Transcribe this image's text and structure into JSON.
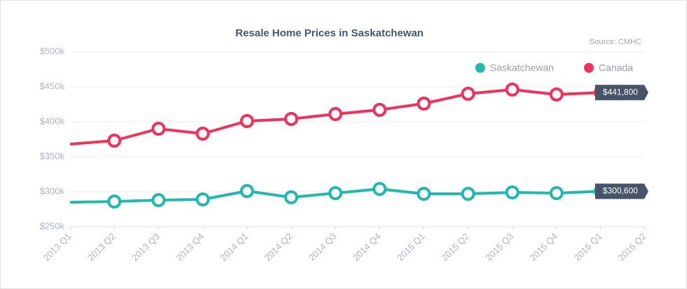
{
  "chart_data": {
    "type": "line",
    "title": "Resale Home Prices in Saskatchewan",
    "subtitle": "Source: CMHC",
    "categories": [
      "2013 Q1",
      "2013 Q2",
      "2013 Q3",
      "2013 Q4",
      "2014 Q1",
      "2014 Q2",
      "2014 Q3",
      "2014 Q4",
      "2015 Q1",
      "2015 Q2",
      "2015 Q3",
      "2015 Q4",
      "2016 Q1",
      "2016 Q2"
    ],
    "series": [
      {
        "name": "Saskatchewan",
        "color": "#22b8ad",
        "values": [
          285000,
          286000,
          288000,
          289000,
          301000,
          292000,
          298000,
          304000,
          297000,
          297000,
          299000,
          298000,
          300600,
          null
        ],
        "value_labels": [
          null,
          null,
          null,
          null,
          null,
          null,
          null,
          null,
          null,
          null,
          null,
          null,
          "$300,600",
          null
        ]
      },
      {
        "name": "Canada",
        "color": "#f0325a",
        "values": [
          368000,
          373000,
          390000,
          383000,
          401000,
          404000,
          411000,
          417000,
          426000,
          440000,
          446000,
          439000,
          441800,
          null
        ],
        "value_labels": [
          null,
          null,
          null,
          null,
          null,
          null,
          null,
          null,
          null,
          null,
          null,
          null,
          "$441,800",
          null
        ]
      }
    ],
    "ylim": [
      250000,
      500000
    ],
    "yticks": [
      {
        "value": 250000,
        "label": "$250k"
      },
      {
        "value": 300000,
        "label": "$300k"
      },
      {
        "value": 350000,
        "label": "$350k"
      },
      {
        "value": 400000,
        "label": "$400k"
      },
      {
        "value": 450000,
        "label": "$450k"
      },
      {
        "value": 500000,
        "label": "$500k"
      }
    ],
    "grid": true,
    "legend": "top-right"
  }
}
